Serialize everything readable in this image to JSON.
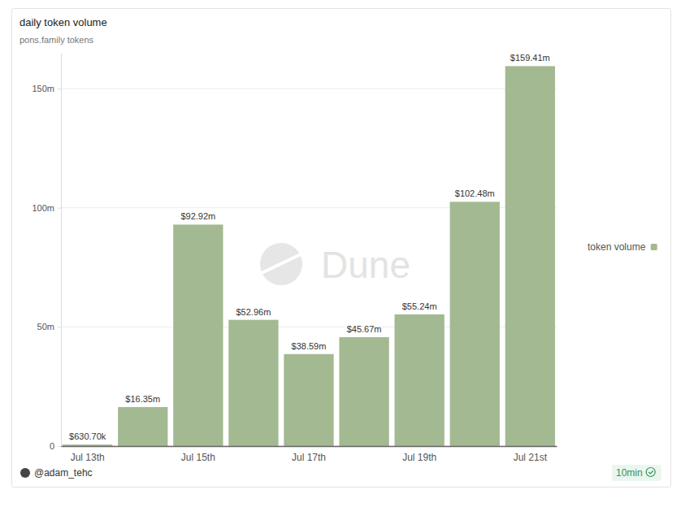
{
  "chart_data": {
    "type": "bar",
    "title": "daily token volume",
    "subtitle": "pons.family tokens",
    "categories": [
      "Jul 13th",
      null,
      "Jul 15th",
      null,
      "Jul 17th",
      null,
      "Jul 19th",
      null,
      "Jul 21st"
    ],
    "series": [
      {
        "name": "token volume",
        "color": "#a3b991",
        "values": [
          0.6307,
          16.35,
          92.92,
          52.96,
          38.59,
          45.67,
          55.24,
          102.48,
          159.41
        ],
        "value_labels": [
          "$630.70k",
          "$16.35m",
          "$92.92m",
          "$52.96m",
          "$38.59m",
          "$45.67m",
          "$55.24m",
          "$102.48m",
          "$159.41m"
        ]
      }
    ],
    "ylim": [
      0,
      165
    ],
    "yticks": [
      0,
      {
        "value": 50,
        "label": "50m"
      },
      {
        "value": 100,
        "label": "100m"
      },
      {
        "value": 150,
        "label": "150m"
      }
    ],
    "grid": true,
    "legend": "right",
    "data_labels": true
  },
  "watermark": "Dune",
  "footer": {
    "author": "@adam_tehc",
    "refresh": "10min"
  }
}
